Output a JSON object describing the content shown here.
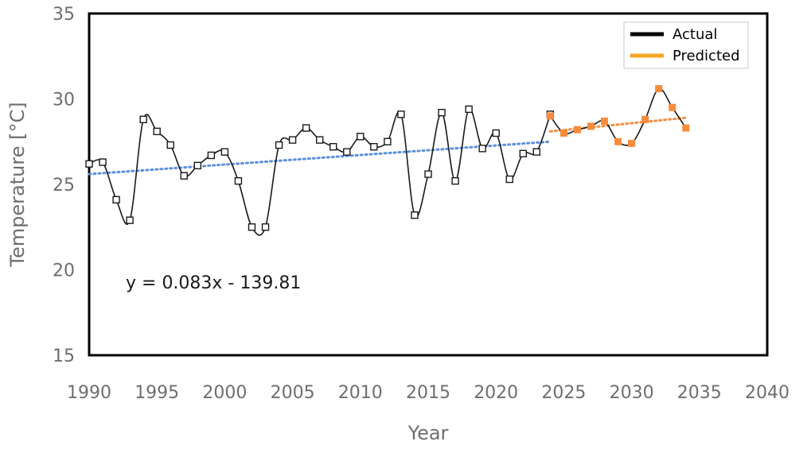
{
  "chart_data": {
    "type": "line",
    "xlabel": "Year",
    "ylabel": "Temperature [°C]",
    "xlim": [
      1990,
      2040
    ],
    "ylim": [
      15,
      35
    ],
    "xticks": [
      1990,
      1995,
      2000,
      2005,
      2010,
      2015,
      2020,
      2025,
      2030,
      2035,
      2040
    ],
    "yticks": [
      15,
      20,
      25,
      30,
      35
    ],
    "grid": false,
    "legend_position": "top-right",
    "series": [
      {
        "name": "Actual",
        "legend_color": "#000000",
        "line_color": "#1a1a1a",
        "marker": "open-square",
        "points": [
          [
            1990,
            26.2
          ],
          [
            1991,
            26.3
          ],
          [
            1992,
            24.1
          ],
          [
            1993,
            22.9
          ],
          [
            1994,
            28.8
          ],
          [
            1995,
            28.1
          ],
          [
            1996,
            27.3
          ],
          [
            1997,
            25.5
          ],
          [
            1998,
            26.1
          ],
          [
            1999,
            26.7
          ],
          [
            2000,
            26.9
          ],
          [
            2001,
            25.2
          ],
          [
            2002,
            22.5
          ],
          [
            2003,
            22.5
          ],
          [
            2004,
            27.3
          ],
          [
            2005,
            27.6
          ],
          [
            2006,
            28.3
          ],
          [
            2007,
            27.6
          ],
          [
            2008,
            27.2
          ],
          [
            2009,
            26.9
          ],
          [
            2010,
            27.8
          ],
          [
            2011,
            27.2
          ],
          [
            2012,
            27.5
          ],
          [
            2013,
            29.1
          ],
          [
            2014,
            23.2
          ],
          [
            2015,
            25.6
          ],
          [
            2016,
            29.2
          ],
          [
            2017,
            25.2
          ],
          [
            2018,
            29.4
          ],
          [
            2019,
            27.1
          ],
          [
            2020,
            28.0
          ],
          [
            2021,
            25.3
          ],
          [
            2022,
            26.8
          ],
          [
            2023,
            26.9
          ],
          [
            2024,
            29.1
          ]
        ]
      },
      {
        "name": "Predicted",
        "legend_color": "#f5a623",
        "line_color": "#1a1a1a",
        "marker_color": "#f88c3c",
        "marker": "filled-square",
        "points": [
          [
            2024,
            29.0
          ],
          [
            2025,
            28.0
          ],
          [
            2026,
            28.2
          ],
          [
            2027,
            28.4
          ],
          [
            2028,
            28.7
          ],
          [
            2029,
            27.5
          ],
          [
            2030,
            27.4
          ],
          [
            2031,
            28.8
          ],
          [
            2032,
            30.6
          ],
          [
            2033,
            29.5
          ],
          [
            2034,
            28.3
          ]
        ]
      }
    ],
    "trendlines": [
      {
        "from": [
          1990,
          25.6
        ],
        "to": [
          2024,
          27.5
        ],
        "color": "#5b8fe0",
        "style": "dotted"
      },
      {
        "from": [
          2024,
          28.1
        ],
        "to": [
          2034,
          28.9
        ],
        "color": "#f88c3c",
        "style": "dotted"
      }
    ],
    "annotations": [
      {
        "text": "y = 0.083x - 139.81"
      }
    ]
  }
}
